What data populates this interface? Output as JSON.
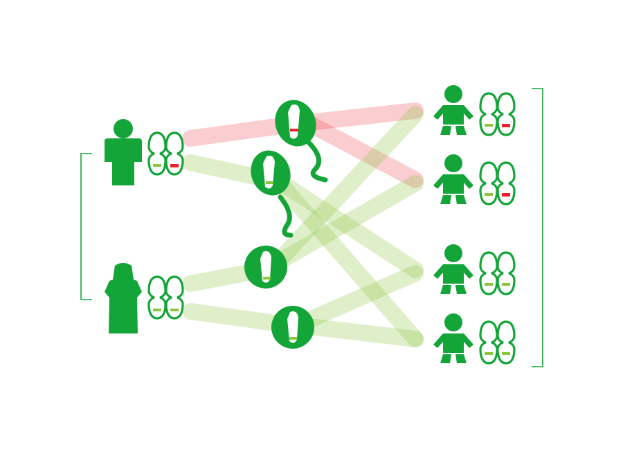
{
  "colors": {
    "icon": "#13a538",
    "normal_band": "#8cc63f",
    "variant_band": "#e8202a",
    "normal_link": "#8cc63f",
    "variant_link": "#e8202a",
    "bracket": "#13a538",
    "background": "#ffffff"
  },
  "parents": [
    {
      "role": "father",
      "icon": "male-person-icon",
      "chromosomes": [
        "normal",
        "variant"
      ]
    },
    {
      "role": "mother",
      "icon": "female-person-icon",
      "chromosomes": [
        "normal",
        "normal"
      ]
    }
  ],
  "gametes": [
    {
      "type": "sperm",
      "icon": "sperm-icon",
      "allele": "variant"
    },
    {
      "type": "sperm",
      "icon": "sperm-icon",
      "allele": "normal"
    },
    {
      "type": "egg",
      "icon": "egg-cell-icon",
      "allele": "normal"
    },
    {
      "type": "egg",
      "icon": "egg-cell-icon",
      "allele": "normal"
    }
  ],
  "children": [
    {
      "icon": "baby-icon",
      "chromosomes": [
        "normal",
        "variant"
      ]
    },
    {
      "icon": "baby-icon",
      "chromosomes": [
        "normal",
        "variant"
      ]
    },
    {
      "icon": "baby-icon",
      "chromosomes": [
        "normal",
        "normal"
      ]
    },
    {
      "icon": "baby-icon",
      "chromosomes": [
        "normal",
        "normal"
      ]
    }
  ]
}
